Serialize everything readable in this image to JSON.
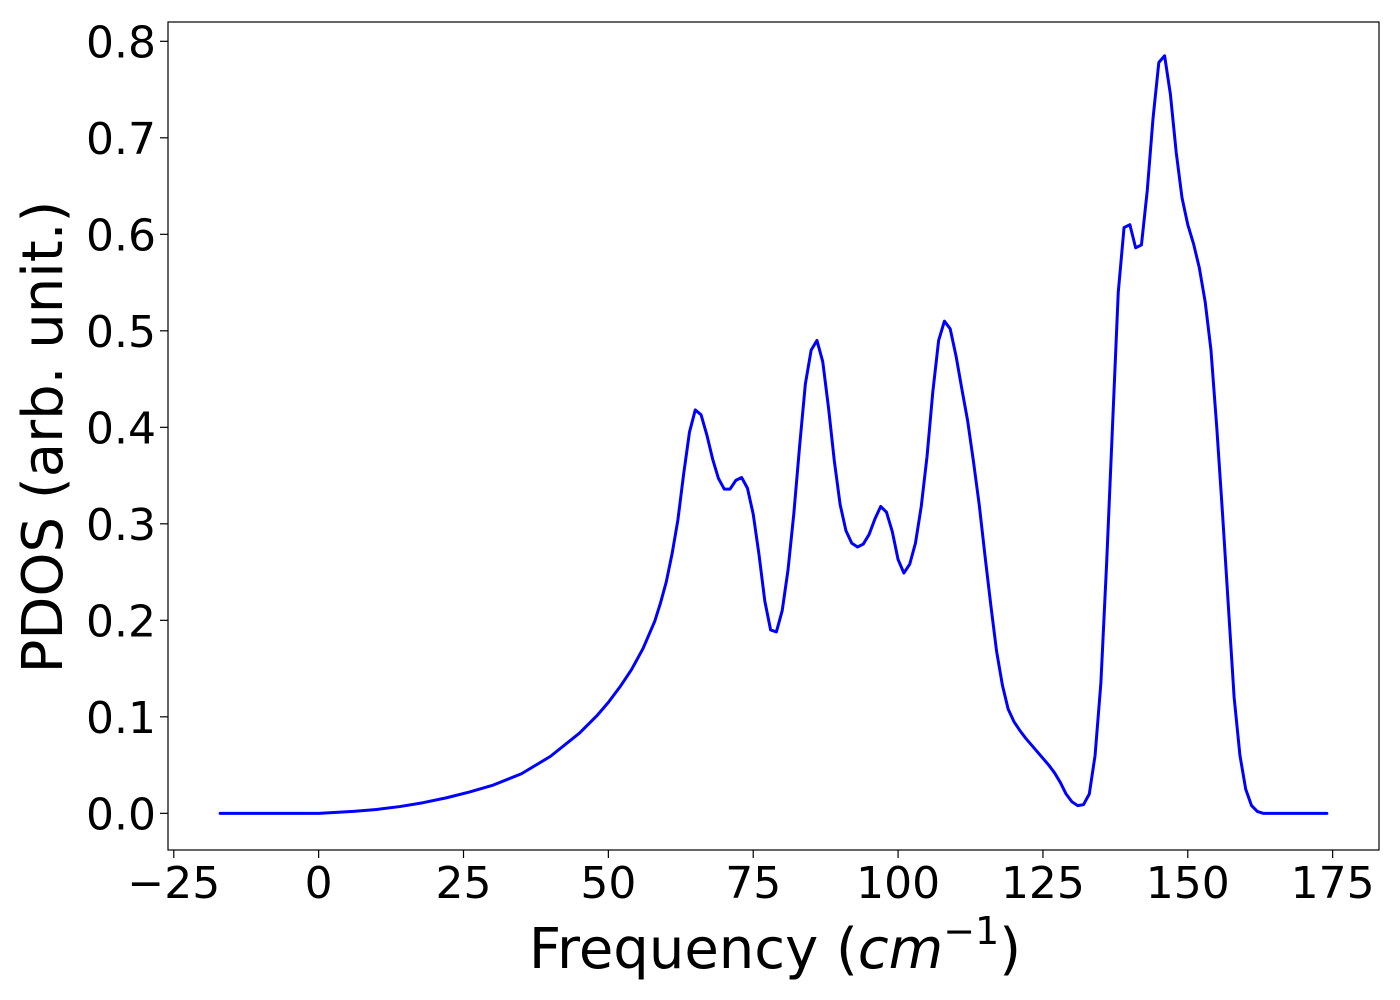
{
  "chart_data": {
    "type": "line",
    "title": "",
    "xlabel_main": "Frequency (",
    "xlabel_unit": "cm",
    "xlabel_exp": "−1",
    "xlabel_close": ")",
    "ylabel": "PDOS (arb. unit.)",
    "xlim": [
      -26,
      183
    ],
    "ylim": [
      -0.038,
      0.82
    ],
    "xticks": [
      -25,
      0,
      25,
      50,
      75,
      100,
      125,
      150,
      175
    ],
    "xtick_labels": [
      "−25",
      "0",
      "25",
      "50",
      "75",
      "100",
      "125",
      "150",
      "175"
    ],
    "yticks": [
      0.0,
      0.1,
      0.2,
      0.3,
      0.4,
      0.5,
      0.6,
      0.7,
      0.8
    ],
    "ytick_labels": [
      "0.0",
      "0.1",
      "0.2",
      "0.3",
      "0.4",
      "0.5",
      "0.6",
      "0.7",
      "0.8"
    ],
    "grid": false,
    "line_color": "#0000ff",
    "series": [
      {
        "x": [
          -17,
          -10,
          -5,
          0,
          3,
          6,
          10,
          14,
          18,
          22,
          26,
          30,
          35,
          40,
          45,
          48,
          50,
          52,
          54,
          56,
          58,
          59,
          60,
          61,
          62,
          63,
          64,
          65,
          66,
          67,
          68,
          69,
          70,
          71,
          72,
          73,
          74,
          75,
          76,
          77,
          78,
          79,
          80,
          81,
          82,
          83,
          84,
          85,
          86,
          87,
          88,
          89,
          90,
          91,
          92,
          93,
          94,
          95,
          96,
          97,
          98,
          99,
          100,
          101,
          102,
          103,
          104,
          105,
          106,
          107,
          108,
          109,
          110,
          111,
          112,
          113,
          114,
          115,
          116,
          117,
          118,
          119,
          120,
          121,
          122,
          123,
          124,
          125,
          126,
          127,
          128,
          129,
          130,
          131,
          132,
          133,
          134,
          135,
          136,
          137,
          138,
          139,
          140,
          141,
          142,
          143,
          144,
          145,
          146,
          147,
          148,
          149,
          150,
          151,
          152,
          153,
          154,
          155,
          156,
          157,
          158,
          159,
          160,
          161,
          162,
          163,
          165,
          168,
          171,
          174
        ],
        "y": [
          0.0,
          0.0,
          0.0,
          0.0,
          0.001,
          0.002,
          0.004,
          0.007,
          0.011,
          0.016,
          0.022,
          0.029,
          0.041,
          0.059,
          0.083,
          0.101,
          0.115,
          0.131,
          0.149,
          0.171,
          0.199,
          0.218,
          0.24,
          0.269,
          0.304,
          0.352,
          0.395,
          0.418,
          0.413,
          0.392,
          0.367,
          0.347,
          0.336,
          0.336,
          0.345,
          0.348,
          0.337,
          0.31,
          0.268,
          0.22,
          0.19,
          0.188,
          0.21,
          0.252,
          0.31,
          0.38,
          0.445,
          0.48,
          0.49,
          0.468,
          0.42,
          0.365,
          0.32,
          0.293,
          0.28,
          0.276,
          0.279,
          0.289,
          0.305,
          0.318,
          0.312,
          0.292,
          0.263,
          0.249,
          0.258,
          0.28,
          0.318,
          0.37,
          0.437,
          0.49,
          0.51,
          0.502,
          0.474,
          0.44,
          0.407,
          0.365,
          0.32,
          0.267,
          0.216,
          0.168,
          0.133,
          0.108,
          0.095,
          0.086,
          0.078,
          0.071,
          0.064,
          0.057,
          0.05,
          0.042,
          0.032,
          0.02,
          0.012,
          0.008,
          0.009,
          0.02,
          0.06,
          0.135,
          0.26,
          0.4,
          0.54,
          0.607,
          0.61,
          0.586,
          0.589,
          0.645,
          0.72,
          0.778,
          0.785,
          0.745,
          0.685,
          0.638,
          0.61,
          0.59,
          0.565,
          0.53,
          0.48,
          0.4,
          0.31,
          0.215,
          0.12,
          0.06,
          0.025,
          0.008,
          0.002,
          0.0,
          0.0,
          0.0,
          0.0,
          0.0
        ]
      }
    ]
  }
}
